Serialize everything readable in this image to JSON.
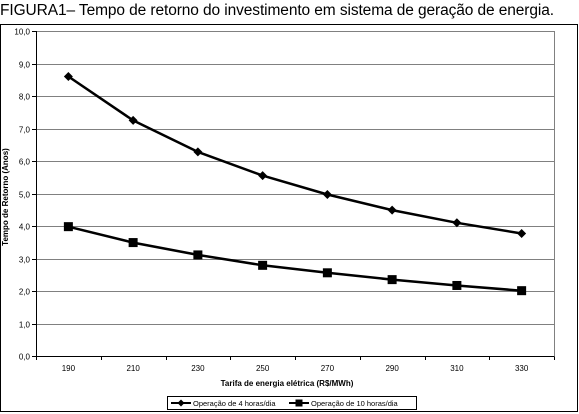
{
  "caption": "FIGURA1– Tempo de retorno do investimento em sistema de geração de energia.",
  "colors": {
    "background": "#ffffff",
    "grid": "#808080",
    "axis": "#000000",
    "series": "#000000"
  },
  "chart_data": {
    "type": "line",
    "title": "FIGURA1– Tempo de retorno do investimento em sistema de geração de energia.",
    "xlabel": "Tarifa de energia elétrica (R$/MWh)",
    "ylabel": "Tempo de Retorno (Anos)",
    "categories": [
      "190",
      "210",
      "230",
      "250",
      "270",
      "290",
      "310",
      "330"
    ],
    "ylim": [
      0,
      10
    ],
    "yticks": [
      "0,0",
      "1,0",
      "2,0",
      "3,0",
      "4,0",
      "5,0",
      "6,0",
      "7,0",
      "8,0",
      "9,0",
      "10,0"
    ],
    "grid": true,
    "legend_position": "bottom",
    "series": [
      {
        "name": "Operação de 4 horas/dia",
        "marker": "diamond",
        "values": [
          8.6,
          7.25,
          6.28,
          5.55,
          4.97,
          4.49,
          4.1,
          3.77
        ]
      },
      {
        "name": "Operação de 10 horas/dia",
        "marker": "square",
        "values": [
          3.98,
          3.49,
          3.11,
          2.79,
          2.56,
          2.35,
          2.17,
          2.01
        ]
      }
    ]
  }
}
